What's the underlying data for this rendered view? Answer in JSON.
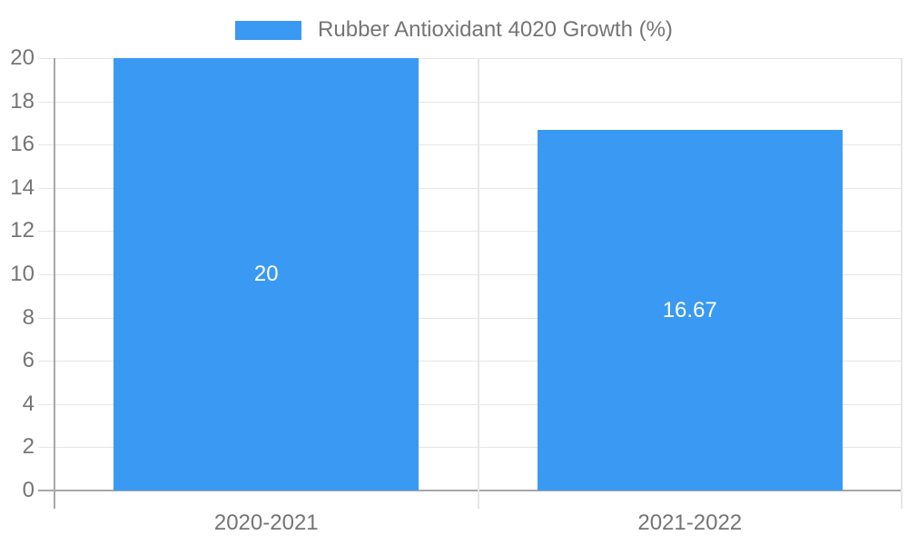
{
  "chart_data": {
    "type": "bar",
    "title": "Rubber Antioxidant 4020 Growth (%)",
    "legend": {
      "label": "Rubber Antioxidant 4020 Growth (%)",
      "position": "top-center"
    },
    "categories": [
      "2020-2021",
      "2021-2022"
    ],
    "values": [
      20,
      16.67
    ],
    "value_labels": [
      "20",
      "16.67"
    ],
    "value_label_position": "inside-center",
    "xlabel": "",
    "ylabel": "",
    "ylim": [
      0,
      20
    ],
    "yticks": [
      0,
      2,
      4,
      6,
      8,
      10,
      12,
      14,
      16,
      18,
      20
    ],
    "grid": true,
    "colors": {
      "bar": "#3a99f2",
      "grid": "#e6e6e6",
      "axis": "#a8a8a8",
      "tick_text": "#757575",
      "legend_text": "#757575",
      "value_label_text": "#ffffff",
      "background": "#ffffff"
    }
  }
}
